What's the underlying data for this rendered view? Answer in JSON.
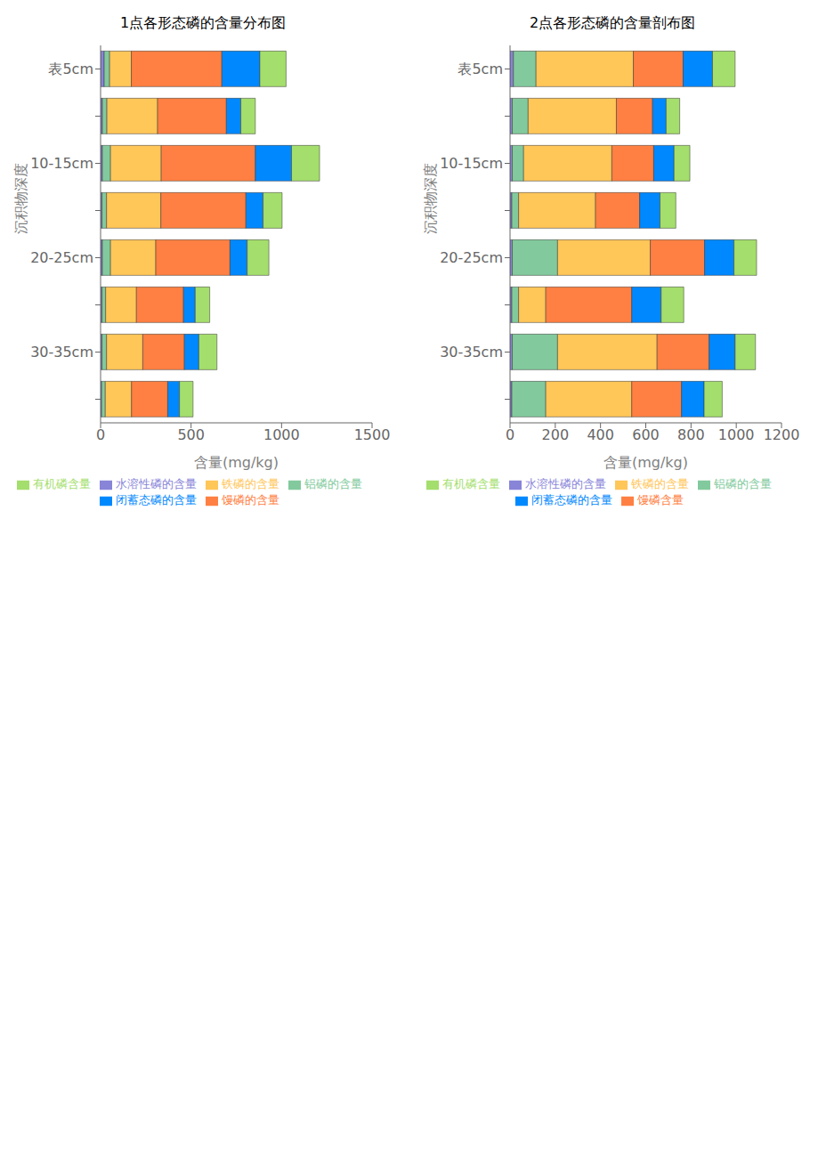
{
  "chart_data": [
    {
      "type": "bar",
      "title": "1点各形态磷的含量分布图",
      "x_label": "含量(mg/kg)",
      "y_label": "沉积物深度",
      "orientation": "horizontal",
      "stacked": true,
      "grid": false,
      "legend": "bottom",
      "categories": [
        "表5cm",
        null,
        "10-15cm",
        null,
        "20-25cm",
        null,
        "30-35cm",
        null
      ],
      "xlim": [
        0,
        1500
      ],
      "xticks": [
        0,
        500,
        1000,
        1500
      ],
      "series": [
        {
          "name": "水溶性磷的含量",
          "values": [
            20,
            10,
            10,
            8,
            10,
            8,
            8,
            6
          ]
        },
        {
          "name": "铝磷的含量",
          "values": [
            30,
            25,
            45,
            25,
            45,
            20,
            25,
            20
          ]
        },
        {
          "name": "铁磷的含量",
          "values": [
            120,
            280,
            280,
            300,
            250,
            170,
            200,
            145
          ]
        },
        {
          "name": "馒磷的含量",
          "values": [
            500,
            380,
            520,
            470,
            410,
            260,
            230,
            200
          ]
        },
        {
          "name": "闭蓄态磷的含量",
          "values": [
            210,
            80,
            200,
            95,
            95,
            65,
            80,
            65
          ]
        },
        {
          "name": "有机磷含量",
          "values": [
            145,
            80,
            155,
            105,
            120,
            80,
            100,
            75
          ]
        }
      ]
    },
    {
      "type": "bar",
      "title": "2点各形态磷的含量剖布图",
      "x_label": "含量(mg/kg)",
      "y_label": "沉积物深度",
      "orientation": "horizontal",
      "stacked": true,
      "grid": false,
      "legend": "bottom",
      "categories": [
        "表5cm",
        null,
        "10-15cm",
        null,
        "20-25cm",
        null,
        "30-35cm",
        null
      ],
      "xlim": [
        0,
        1200
      ],
      "xticks": [
        0,
        200,
        400,
        600,
        800,
        1000,
        1200
      ],
      "series": [
        {
          "name": "水溶性磷的含量",
          "values": [
            15,
            10,
            10,
            8,
            10,
            8,
            10,
            8
          ]
        },
        {
          "name": "铝磷的含量",
          "values": [
            100,
            70,
            50,
            30,
            200,
            30,
            200,
            150
          ]
        },
        {
          "name": "铁磷的含量",
          "values": [
            430,
            390,
            390,
            340,
            410,
            120,
            440,
            380
          ]
        },
        {
          "name": "馒磷含量",
          "values": [
            220,
            160,
            185,
            195,
            240,
            380,
            230,
            220
          ]
        },
        {
          "name": "闭蓄态磷的含量",
          "values": [
            130,
            60,
            90,
            90,
            130,
            130,
            115,
            100
          ]
        },
        {
          "name": "有机磷含量",
          "values": [
            100,
            60,
            70,
            70,
            100,
            100,
            90,
            80
          ]
        }
      ]
    }
  ]
}
